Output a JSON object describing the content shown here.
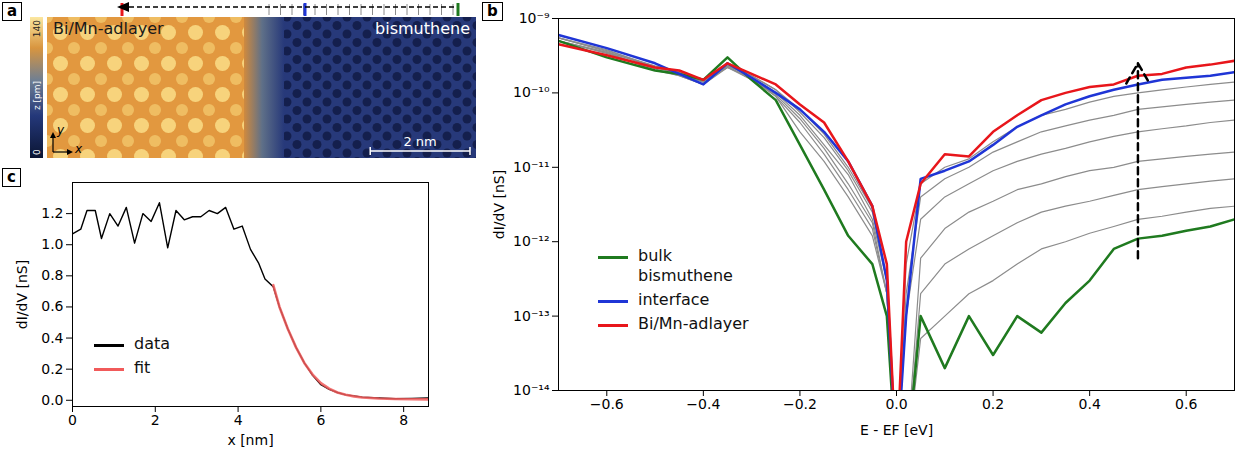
{
  "chart_data": [
    {
      "panel": "a",
      "type": "image",
      "labels": [
        "Bi/Mn-adlayer",
        "bismuthene"
      ],
      "colorbar": {
        "label": "z [pm]",
        "range": [
          0,
          140
        ],
        "ticks": [
          0,
          140
        ]
      },
      "scale_bar": {
        "value": 2,
        "label": "2 nm"
      },
      "axes": [
        "x",
        "y"
      ]
    },
    {
      "panel": "b",
      "type": "line",
      "log": "y",
      "x": [
        -0.7,
        -0.6,
        -0.5,
        -0.45,
        -0.4,
        -0.35,
        -0.3,
        -0.25,
        -0.2,
        -0.15,
        -0.1,
        -0.05,
        -0.02,
        0.0,
        0.02,
        0.05,
        0.1,
        0.15,
        0.2,
        0.25,
        0.3,
        0.35,
        0.4,
        0.45,
        0.5,
        0.55,
        0.6,
        0.65,
        0.7
      ],
      "series": [
        {
          "color": "#8c8c8c",
          "values": [
            5e-10,
            3.5e-10,
            2e-10,
            1.7e-10,
            1.3e-10,
            2.2e-10,
            1.5e-10,
            9e-11,
            4e-11,
            1.5e-11,
            5e-12,
            1.5e-12,
            2e-13,
            1e-15,
            1e-15,
            5e-14,
            1e-13,
            2e-13,
            3e-13,
            5e-13,
            8e-13,
            1e-12,
            1.3e-12,
            1.6e-12,
            2e-12,
            2.2e-12,
            2.5e-12,
            2.8e-12,
            3e-12
          ]
        },
        {
          "color": "#8c8c8c",
          "values": [
            5.5e-10,
            3.8e-10,
            2.2e-10,
            1.8e-10,
            1.4e-10,
            2.4e-10,
            1.6e-10,
            9e-11,
            3e-11,
            1.2e-11,
            4e-12,
            1.2e-12,
            2e-13,
            1e-15,
            1e-15,
            2e-13,
            5e-13,
            8e-13,
            1.2e-12,
            1.8e-12,
            2.5e-12,
            3e-12,
            3.5e-12,
            4.2e-12,
            5e-12,
            5.5e-12,
            6e-12,
            6.5e-12,
            7e-12
          ]
        },
        {
          "color": "#8c8c8c",
          "values": [
            5e-10,
            3.4e-10,
            2.1e-10,
            1.7e-10,
            1.3e-10,
            2.3e-10,
            1.5e-10,
            9.5e-11,
            4.5e-11,
            1.8e-11,
            6e-12,
            1.8e-12,
            2e-13,
            1e-15,
            1e-15,
            6e-13,
            1.5e-12,
            2.5e-12,
            3.5e-12,
            5e-12,
            6e-12,
            7.5e-12,
            9e-12,
            1e-11,
            1.2e-11,
            1.3e-11,
            1.4e-11,
            1.5e-11,
            1.6e-11
          ]
        },
        {
          "color": "#8c8c8c",
          "values": [
            5.5e-10,
            3.6e-10,
            2.2e-10,
            1.8e-10,
            1.4e-10,
            2.2e-10,
            1.6e-10,
            1e-10,
            5e-11,
            2e-11,
            8e-12,
            2e-12,
            3e-13,
            1e-15,
            1e-13,
            2e-12,
            4e-12,
            6e-12,
            9e-12,
            1.2e-11,
            1.5e-11,
            1.8e-11,
            2.2e-11,
            2.6e-11,
            3e-11,
            3.3e-11,
            3.6e-11,
            4e-11,
            4.3e-11
          ]
        },
        {
          "color": "#8c8c8c",
          "values": [
            5e-10,
            3.5e-10,
            2.3e-10,
            1.9e-10,
            1.4e-10,
            2.3e-10,
            1.7e-10,
            1.1e-10,
            5.5e-11,
            2.5e-11,
            9e-12,
            2.5e-12,
            3e-13,
            1e-15,
            2e-13,
            4e-12,
            7e-12,
            1e-11,
            1.6e-11,
            2.2e-11,
            3e-11,
            3.6e-11,
            4.3e-11,
            5e-11,
            6e-11,
            6.5e-11,
            7e-11,
            7.5e-11,
            8e-11
          ]
        },
        {
          "color": "#8c8c8c",
          "values": [
            5.5e-10,
            3.7e-10,
            2.3e-10,
            1.9e-10,
            1.4e-10,
            2.4e-10,
            1.7e-10,
            1.1e-10,
            6e-11,
            2.8e-11,
            1e-11,
            2.8e-12,
            3e-13,
            1e-15,
            5e-13,
            6e-12,
            1e-11,
            1.3e-11,
            2.2e-11,
            3.5e-11,
            5e-11,
            6e-11,
            7.5e-11,
            9e-11,
            1e-10,
            1.1e-10,
            1.2e-10,
            1.3e-10,
            1.4e-10
          ]
        },
        {
          "name": "bulk bismuthene",
          "color": "#1f7a1f",
          "values": [
            5e-10,
            3e-10,
            2e-10,
            1.8e-10,
            1.5e-10,
            3e-10,
            1.5e-10,
            8e-11,
            2e-11,
            5e-12,
            1.2e-12,
            5e-13,
            1e-13,
            1e-15,
            1e-15,
            1e-13,
            2e-14,
            1e-13,
            3e-14,
            1e-13,
            6e-14,
            1.5e-13,
            3e-13,
            8e-13,
            1.1e-12,
            1.2e-12,
            1.4e-12,
            1.6e-12,
            2e-12
          ]
        },
        {
          "name": "interface",
          "color": "#1f35d6",
          "values": [
            6e-10,
            4e-10,
            2.5e-10,
            1.8e-10,
            1.3e-10,
            2.5e-10,
            1.6e-10,
            1e-10,
            6e-11,
            3e-11,
            1.2e-11,
            3e-12,
            3e-13,
            1e-15,
            1e-13,
            7e-12,
            9e-12,
            1.2e-11,
            2e-11,
            3.5e-11,
            5e-11,
            7e-11,
            9e-11,
            1.1e-10,
            1.3e-10,
            1.5e-10,
            1.6e-10,
            1.7e-10,
            1.9e-10
          ]
        },
        {
          "name": "Bi/Mn-adlayer",
          "color": "#e8161b",
          "values": [
            4.5e-10,
            3.2e-10,
            2.2e-10,
            2e-10,
            1.5e-10,
            2.5e-10,
            1.8e-10,
            1.3e-10,
            7e-11,
            4e-11,
            1.2e-11,
            3e-12,
            5e-13,
            1e-15,
            1e-12,
            6e-12,
            1.5e-11,
            1.4e-11,
            3e-11,
            5e-11,
            8e-11,
            1e-10,
            1.2e-10,
            1.3e-10,
            1.7e-10,
            1.8e-10,
            2.2e-10,
            2.4e-10,
            2.7e-10
          ]
        }
      ],
      "xlim": [
        -0.7,
        0.7
      ],
      "xticks": [
        {
          "value": -0.6,
          "label": "−0.6"
        },
        {
          "value": -0.4,
          "label": "−0.4"
        },
        {
          "value": -0.2,
          "label": "−0.2"
        },
        {
          "value": 0,
          "label": "0.0"
        },
        0.2,
        0.4,
        0.6
      ],
      "ylim": [
        1e-14,
        1e-09
      ],
      "yticks": [
        {
          "value": 1e-14,
          "label": "10⁻¹⁴"
        },
        {
          "value": 1e-13,
          "label": "10⁻¹³"
        },
        {
          "value": 1e-12,
          "label": "10⁻¹²"
        },
        {
          "value": 1e-11,
          "label": "10⁻¹¹"
        },
        {
          "value": 1e-10,
          "label": "10⁻¹⁰"
        },
        {
          "value": 1e-09,
          "label": "10⁻⁹"
        }
      ],
      "x_label": "E - EF [eV]",
      "y_label": "dI/dV [nS]",
      "legend": "lower left",
      "grid": false,
      "arrow": {
        "x": 0.5,
        "from": 6e-13,
        "to": 2.5e-10
      }
    },
    {
      "panel": "c",
      "type": "line",
      "x": [
        0,
        0.2,
        0.35,
        0.55,
        0.7,
        0.9,
        1.1,
        1.3,
        1.5,
        1.7,
        1.9,
        2.1,
        2.3,
        2.5,
        2.7,
        2.9,
        3.1,
        3.3,
        3.5,
        3.7,
        3.9,
        4.1,
        4.3,
        4.5,
        4.65,
        4.85,
        5.0,
        5.2,
        5.4,
        5.6,
        5.8,
        6.0,
        6.2,
        6.4,
        6.6,
        6.8,
        7.0,
        7.4,
        7.8,
        8.2,
        8.6
      ],
      "series": [
        {
          "name": "data",
          "color": "#000000",
          "values": [
            1.07,
            1.1,
            1.22,
            1.22,
            1.04,
            1.2,
            1.12,
            1.24,
            1.01,
            1.2,
            1.15,
            1.27,
            0.98,
            1.22,
            1.16,
            1.18,
            1.18,
            1.22,
            1.2,
            1.24,
            1.1,
            1.12,
            0.97,
            0.88,
            0.78,
            0.73,
            0.6,
            0.46,
            0.34,
            0.24,
            0.16,
            0.1,
            0.07,
            0.05,
            0.035,
            0.028,
            0.02,
            0.015,
            0.01,
            0.012,
            0.015
          ]
        },
        {
          "name": "fit",
          "color": "#f15a5a",
          "values": [
            null,
            null,
            null,
            null,
            null,
            null,
            null,
            null,
            null,
            null,
            null,
            null,
            null,
            null,
            null,
            null,
            null,
            null,
            null,
            null,
            null,
            null,
            null,
            null,
            null,
            0.74,
            0.6,
            0.46,
            0.34,
            0.24,
            0.165,
            0.11,
            0.075,
            0.05,
            0.035,
            0.025,
            0.018,
            0.011,
            0.008,
            0.007,
            0.006
          ]
        }
      ],
      "xlim": [
        0,
        8.6
      ],
      "xticks": [
        0,
        2,
        4,
        6,
        8
      ],
      "ylim": [
        -0.04,
        1.4
      ],
      "yticks": [
        {
          "value": 0,
          "label": "0.0"
        },
        0.2,
        0.4,
        0.6,
        0.8,
        {
          "value": 1,
          "label": "1.0"
        },
        1.2
      ],
      "x_label": "x [nm]",
      "y_label": "dI/dV [nS]",
      "legend": "lower left",
      "grid": false
    }
  ]
}
